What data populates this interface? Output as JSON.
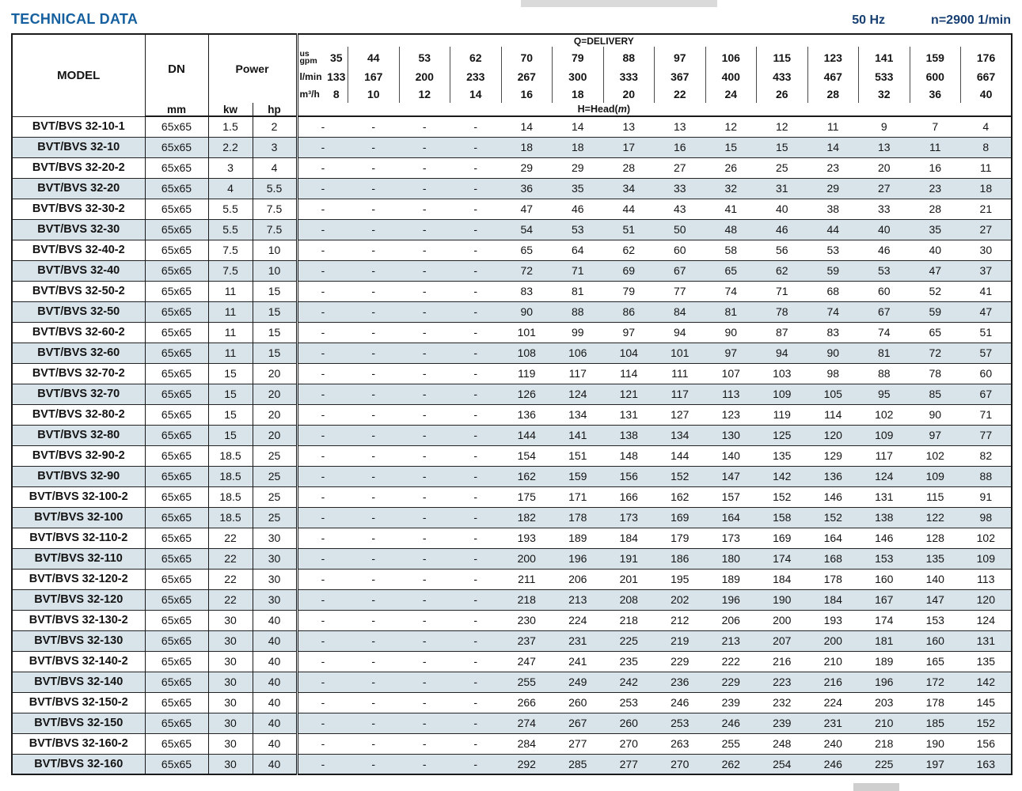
{
  "page": {
    "title": "TECHNICAL DATA",
    "frequency": "50 Hz",
    "speed": "n=2900 1/min"
  },
  "colors": {
    "title_blue": "#1660a0",
    "specs_blue": "#173f72",
    "row_alt": "#d9e4ea"
  },
  "table": {
    "headers": {
      "model": "MODEL",
      "dn": "DN",
      "dn_unit": "mm",
      "power": "Power",
      "power_units": [
        "kw",
        "hp"
      ],
      "delivery_title": "Q=DELIVERY",
      "head_prefix": "H=Head(",
      "head_unit": "m",
      "head_suffix": ")",
      "unit_rows": [
        {
          "label": "us gpm",
          "label_lines": [
            "us",
            "gpm"
          ],
          "values": [
            "35",
            "44",
            "53",
            "62",
            "70",
            "79",
            "88",
            "97",
            "106",
            "115",
            "123",
            "141",
            "159",
            "176"
          ]
        },
        {
          "label": "l/min",
          "label_lines": [
            "l/min"
          ],
          "values": [
            "133",
            "167",
            "200",
            "233",
            "267",
            "300",
            "333",
            "367",
            "400",
            "433",
            "467",
            "533",
            "600",
            "667"
          ]
        },
        {
          "label": "m³/h",
          "label_lines": [
            "m³/h"
          ],
          "values": [
            "8",
            "10",
            "12",
            "14",
            "16",
            "18",
            "20",
            "22",
            "24",
            "26",
            "28",
            "32",
            "36",
            "40"
          ]
        }
      ]
    },
    "rows": [
      {
        "model": "BVT/BVS 32-10-1",
        "dn": "65x65",
        "kw": "1.5",
        "hp": "2",
        "head": [
          "-",
          "-",
          "-",
          "-",
          "14",
          "14",
          "13",
          "13",
          "12",
          "12",
          "11",
          "9",
          "7",
          "4"
        ]
      },
      {
        "model": "BVT/BVS 32-10",
        "dn": "65x65",
        "kw": "2.2",
        "hp": "3",
        "head": [
          "-",
          "-",
          "-",
          "-",
          "18",
          "18",
          "17",
          "16",
          "15",
          "15",
          "14",
          "13",
          "11",
          "8"
        ]
      },
      {
        "model": "BVT/BVS 32-20-2",
        "dn": "65x65",
        "kw": "3",
        "hp": "4",
        "head": [
          "-",
          "-",
          "-",
          "-",
          "29",
          "29",
          "28",
          "27",
          "26",
          "25",
          "23",
          "20",
          "16",
          "11"
        ]
      },
      {
        "model": "BVT/BVS 32-20",
        "dn": "65x65",
        "kw": "4",
        "hp": "5.5",
        "head": [
          "-",
          "-",
          "-",
          "-",
          "36",
          "35",
          "34",
          "33",
          "32",
          "31",
          "29",
          "27",
          "23",
          "18"
        ]
      },
      {
        "model": "BVT/BVS 32-30-2",
        "dn": "65x65",
        "kw": "5.5",
        "hp": "7.5",
        "head": [
          "-",
          "-",
          "-",
          "-",
          "47",
          "46",
          "44",
          "43",
          "41",
          "40",
          "38",
          "33",
          "28",
          "21"
        ]
      },
      {
        "model": "BVT/BVS 32-30",
        "dn": "65x65",
        "kw": "5.5",
        "hp": "7.5",
        "head": [
          "-",
          "-",
          "-",
          "-",
          "54",
          "53",
          "51",
          "50",
          "48",
          "46",
          "44",
          "40",
          "35",
          "27"
        ]
      },
      {
        "model": "BVT/BVS 32-40-2",
        "dn": "65x65",
        "kw": "7.5",
        "hp": "10",
        "head": [
          "-",
          "-",
          "-",
          "-",
          "65",
          "64",
          "62",
          "60",
          "58",
          "56",
          "53",
          "46",
          "40",
          "30"
        ]
      },
      {
        "model": "BVT/BVS 32-40",
        "dn": "65x65",
        "kw": "7.5",
        "hp": "10",
        "head": [
          "-",
          "-",
          "-",
          "-",
          "72",
          "71",
          "69",
          "67",
          "65",
          "62",
          "59",
          "53",
          "47",
          "37"
        ]
      },
      {
        "model": "BVT/BVS 32-50-2",
        "dn": "65x65",
        "kw": "11",
        "hp": "15",
        "head": [
          "-",
          "-",
          "-",
          "-",
          "83",
          "81",
          "79",
          "77",
          "74",
          "71",
          "68",
          "60",
          "52",
          "41"
        ]
      },
      {
        "model": "BVT/BVS 32-50",
        "dn": "65x65",
        "kw": "11",
        "hp": "15",
        "head": [
          "-",
          "-",
          "-",
          "-",
          "90",
          "88",
          "86",
          "84",
          "81",
          "78",
          "74",
          "67",
          "59",
          "47"
        ]
      },
      {
        "model": "BVT/BVS 32-60-2",
        "dn": "65x65",
        "kw": "11",
        "hp": "15",
        "head": [
          "-",
          "-",
          "-",
          "-",
          "101",
          "99",
          "97",
          "94",
          "90",
          "87",
          "83",
          "74",
          "65",
          "51"
        ]
      },
      {
        "model": "BVT/BVS 32-60",
        "dn": "65x65",
        "kw": "11",
        "hp": "15",
        "head": [
          "-",
          "-",
          "-",
          "-",
          "108",
          "106",
          "104",
          "101",
          "97",
          "94",
          "90",
          "81",
          "72",
          "57"
        ]
      },
      {
        "model": "BVT/BVS 32-70-2",
        "dn": "65x65",
        "kw": "15",
        "hp": "20",
        "head": [
          "-",
          "-",
          "-",
          "-",
          "119",
          "117",
          "114",
          "111",
          "107",
          "103",
          "98",
          "88",
          "78",
          "60"
        ]
      },
      {
        "model": "BVT/BVS 32-70",
        "dn": "65x65",
        "kw": "15",
        "hp": "20",
        "head": [
          "-",
          "-",
          "-",
          "-",
          "126",
          "124",
          "121",
          "117",
          "113",
          "109",
          "105",
          "95",
          "85",
          "67"
        ]
      },
      {
        "model": "BVT/BVS 32-80-2",
        "dn": "65x65",
        "kw": "15",
        "hp": "20",
        "head": [
          "-",
          "-",
          "-",
          "-",
          "136",
          "134",
          "131",
          "127",
          "123",
          "119",
          "114",
          "102",
          "90",
          "71"
        ]
      },
      {
        "model": "BVT/BVS 32-80",
        "dn": "65x65",
        "kw": "15",
        "hp": "20",
        "head": [
          "-",
          "-",
          "-",
          "-",
          "144",
          "141",
          "138",
          "134",
          "130",
          "125",
          "120",
          "109",
          "97",
          "77"
        ]
      },
      {
        "model": "BVT/BVS 32-90-2",
        "dn": "65x65",
        "kw": "18.5",
        "hp": "25",
        "head": [
          "-",
          "-",
          "-",
          "-",
          "154",
          "151",
          "148",
          "144",
          "140",
          "135",
          "129",
          "117",
          "102",
          "82"
        ]
      },
      {
        "model": "BVT/BVS 32-90",
        "dn": "65x65",
        "kw": "18.5",
        "hp": "25",
        "head": [
          "-",
          "-",
          "-",
          "-",
          "162",
          "159",
          "156",
          "152",
          "147",
          "142",
          "136",
          "124",
          "109",
          "88"
        ]
      },
      {
        "model": "BVT/BVS 32-100-2",
        "dn": "65x65",
        "kw": "18.5",
        "hp": "25",
        "head": [
          "-",
          "-",
          "-",
          "-",
          "175",
          "171",
          "166",
          "162",
          "157",
          "152",
          "146",
          "131",
          "115",
          "91"
        ]
      },
      {
        "model": "BVT/BVS 32-100",
        "dn": "65x65",
        "kw": "18.5",
        "hp": "25",
        "head": [
          "-",
          "-",
          "-",
          "-",
          "182",
          "178",
          "173",
          "169",
          "164",
          "158",
          "152",
          "138",
          "122",
          "98"
        ]
      },
      {
        "model": "BVT/BVS 32-110-2",
        "dn": "65x65",
        "kw": "22",
        "hp": "30",
        "head": [
          "-",
          "-",
          "-",
          "-",
          "193",
          "189",
          "184",
          "179",
          "173",
          "169",
          "164",
          "146",
          "128",
          "102"
        ]
      },
      {
        "model": "BVT/BVS 32-110",
        "dn": "65x65",
        "kw": "22",
        "hp": "30",
        "head": [
          "-",
          "-",
          "-",
          "-",
          "200",
          "196",
          "191",
          "186",
          "180",
          "174",
          "168",
          "153",
          "135",
          "109"
        ]
      },
      {
        "model": "BVT/BVS 32-120-2",
        "dn": "65x65",
        "kw": "22",
        "hp": "30",
        "head": [
          "-",
          "-",
          "-",
          "-",
          "211",
          "206",
          "201",
          "195",
          "189",
          "184",
          "178",
          "160",
          "140",
          "113"
        ]
      },
      {
        "model": "BVT/BVS 32-120",
        "dn": "65x65",
        "kw": "22",
        "hp": "30",
        "head": [
          "-",
          "-",
          "-",
          "-",
          "218",
          "213",
          "208",
          "202",
          "196",
          "190",
          "184",
          "167",
          "147",
          "120"
        ]
      },
      {
        "model": "BVT/BVS 32-130-2",
        "dn": "65x65",
        "kw": "30",
        "hp": "40",
        "head": [
          "-",
          "-",
          "-",
          "-",
          "230",
          "224",
          "218",
          "212",
          "206",
          "200",
          "193",
          "174",
          "153",
          "124"
        ]
      },
      {
        "model": "BVT/BVS 32-130",
        "dn": "65x65",
        "kw": "30",
        "hp": "40",
        "head": [
          "-",
          "-",
          "-",
          "-",
          "237",
          "231",
          "225",
          "219",
          "213",
          "207",
          "200",
          "181",
          "160",
          "131"
        ]
      },
      {
        "model": "BVT/BVS 32-140-2",
        "dn": "65x65",
        "kw": "30",
        "hp": "40",
        "head": [
          "-",
          "-",
          "-",
          "-",
          "247",
          "241",
          "235",
          "229",
          "222",
          "216",
          "210",
          "189",
          "165",
          "135"
        ]
      },
      {
        "model": "BVT/BVS 32-140",
        "dn": "65x65",
        "kw": "30",
        "hp": "40",
        "head": [
          "-",
          "-",
          "-",
          "-",
          "255",
          "249",
          "242",
          "236",
          "229",
          "223",
          "216",
          "196",
          "172",
          "142"
        ]
      },
      {
        "model": "BVT/BVS 32-150-2",
        "dn": "65x65",
        "kw": "30",
        "hp": "40",
        "head": [
          "-",
          "-",
          "-",
          "-",
          "266",
          "260",
          "253",
          "246",
          "239",
          "232",
          "224",
          "203",
          "178",
          "145"
        ]
      },
      {
        "model": "BVT/BVS 32-150",
        "dn": "65x65",
        "kw": "30",
        "hp": "40",
        "head": [
          "-",
          "-",
          "-",
          "-",
          "274",
          "267",
          "260",
          "253",
          "246",
          "239",
          "231",
          "210",
          "185",
          "152"
        ]
      },
      {
        "model": "BVT/BVS 32-160-2",
        "dn": "65x65",
        "kw": "30",
        "hp": "40",
        "head": [
          "-",
          "-",
          "-",
          "-",
          "284",
          "277",
          "270",
          "263",
          "255",
          "248",
          "240",
          "218",
          "190",
          "156"
        ]
      },
      {
        "model": "BVT/BVS 32-160",
        "dn": "65x65",
        "kw": "30",
        "hp": "40",
        "head": [
          "-",
          "-",
          "-",
          "-",
          "292",
          "285",
          "277",
          "270",
          "262",
          "254",
          "246",
          "225",
          "197",
          "163"
        ]
      }
    ]
  }
}
